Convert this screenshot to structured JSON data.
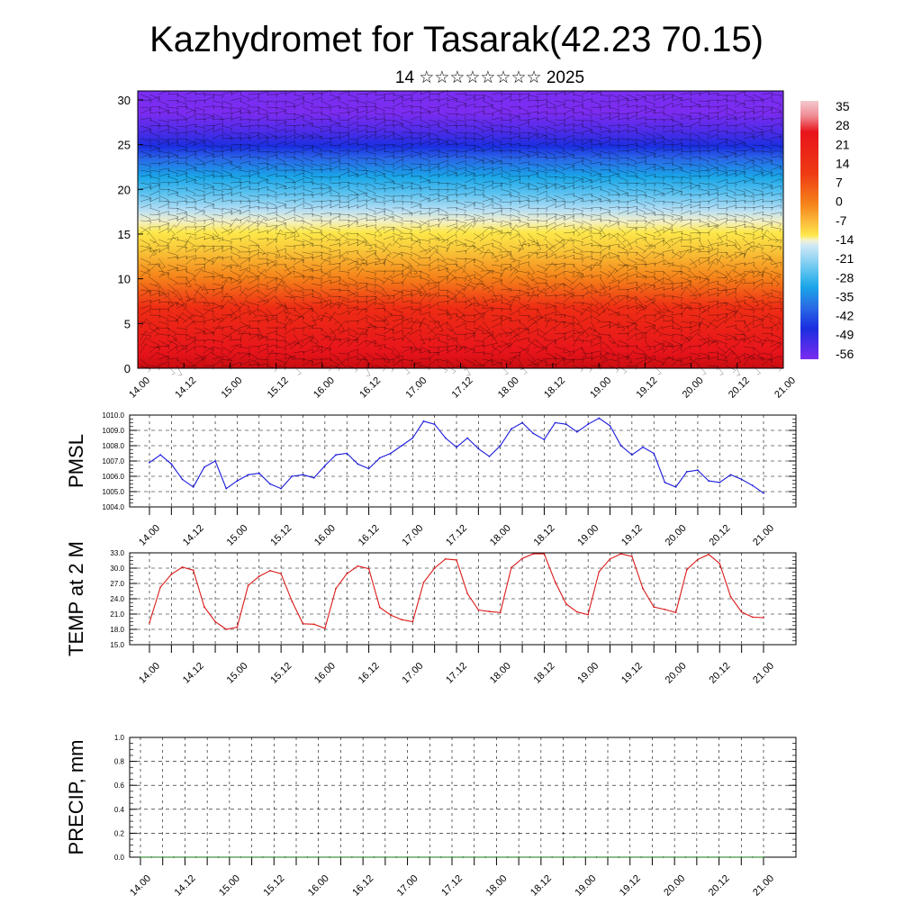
{
  "header": {
    "title": "Kazhydromet for Tasarak(42.23 70.15)",
    "subtitle": "14 ☆☆☆☆☆☆☆☆ 2025"
  },
  "time_ticks": [
    "14.00",
    "14.12",
    "15.00",
    "15.12",
    "16.00",
    "16.12",
    "17.00",
    "17.12",
    "18.00",
    "18.12",
    "19.00",
    "19.12",
    "20.00",
    "20.12",
    "21.00"
  ],
  "chart_data": [
    {
      "type": "heatmap",
      "title": "",
      "xlabel": "",
      "ylabel": "",
      "ylim": [
        0,
        31
      ],
      "y_ticks": [
        "0",
        "5",
        "10",
        "15",
        "20",
        "25",
        "30"
      ],
      "x_ticks": [
        "14.00",
        "14.12",
        "15.00",
        "15.12",
        "16.00",
        "16.12",
        "17.00",
        "17.12",
        "18.00",
        "18.12",
        "19.00",
        "19.12",
        "20.00",
        "20.12",
        "21.00"
      ],
      "colorbar": {
        "labels": [
          "35",
          "28",
          "21",
          "14",
          "7",
          "0",
          "-7",
          "-14",
          "-21",
          "-28",
          "-35",
          "-42",
          "-49",
          "-56"
        ],
        "colors": {
          "warm_top": "#f4c9cf",
          "red": "#e8141b",
          "orange": "#f5841a",
          "yellow": "#fde84a",
          "light_blue": "#b7dff4",
          "cyan": "#1aa6e8",
          "blue": "#1a2ee0",
          "violet": "#7b2cf0"
        }
      },
      "overlay": "wind barbs"
    },
    {
      "type": "line",
      "ylabel": "PMSL",
      "ylim": [
        1004.0,
        1010.0
      ],
      "y_ticks": [
        "1010.0",
        "1009.0",
        "1008.0",
        "1007.0",
        "1006.0",
        "1005.0",
        "1004.0"
      ],
      "x_ticks": [
        "14.00",
        "14.12",
        "15.00",
        "15.12",
        "16.00",
        "16.12",
        "17.00",
        "17.12",
        "18.00",
        "18.12",
        "19.00",
        "19.12",
        "20.00",
        "20.12",
        "21.00"
      ],
      "color": "#1a1adc",
      "series": [
        {
          "x": [
            0,
            3,
            6,
            9,
            12,
            15,
            18,
            21,
            24,
            27,
            30,
            33,
            36,
            39,
            42,
            45,
            48,
            51,
            54,
            57,
            60,
            63,
            66,
            69,
            72,
            75,
            78,
            81,
            84,
            87,
            90,
            93,
            96,
            99,
            102,
            105,
            108,
            111,
            114,
            117,
            120,
            123,
            126,
            129,
            132,
            135,
            138,
            141,
            144,
            147,
            150,
            153,
            156,
            159,
            162,
            165,
            168
          ],
          "values": [
            1006.9,
            1007.4,
            1006.8,
            1005.8,
            1005.3,
            1006.6,
            1007.0,
            1005.2,
            1005.7,
            1006.1,
            1006.2,
            1005.5,
            1005.2,
            1006.0,
            1006.1,
            1005.9,
            1006.7,
            1007.4,
            1007.5,
            1006.8,
            1006.5,
            1007.2,
            1007.5,
            1008.0,
            1008.5,
            1009.6,
            1009.4,
            1008.5,
            1007.9,
            1008.5,
            1007.8,
            1007.3,
            1008.0,
            1009.1,
            1009.5,
            1008.8,
            1008.4,
            1009.5,
            1009.4,
            1008.9,
            1009.4,
            1009.8,
            1009.3,
            1008.0,
            1007.4,
            1007.9,
            1007.5,
            1005.6,
            1005.3,
            1006.3,
            1006.4,
            1005.7,
            1005.6,
            1006.1,
            1005.8,
            1005.4,
            1004.9
          ]
        }
      ]
    },
    {
      "type": "line",
      "ylabel": "TEMP at 2 M",
      "ylim": [
        15.0,
        33.0
      ],
      "y_ticks": [
        "33.0",
        "30.0",
        "27.0",
        "24.0",
        "21.0",
        "18.0",
        "15.0"
      ],
      "x_ticks": [
        "14.00",
        "14.12",
        "15.00",
        "15.12",
        "16.00",
        "16.12",
        "17.00",
        "17.12",
        "18.00",
        "18.12",
        "19.00",
        "19.12",
        "20.00",
        "20.12",
        "21.00"
      ],
      "color": "#dc1a1a",
      "series": [
        {
          "x": [
            0,
            3,
            6,
            9,
            12,
            15,
            18,
            21,
            24,
            27,
            30,
            33,
            36,
            39,
            42,
            45,
            48,
            51,
            54,
            57,
            60,
            63,
            66,
            69,
            72,
            75,
            78,
            81,
            84,
            87,
            90,
            93,
            96,
            99,
            102,
            105,
            108,
            111,
            114,
            117,
            120,
            123,
            126,
            129,
            132,
            135,
            138,
            141,
            144,
            147,
            150,
            153,
            156,
            159,
            162,
            165,
            168
          ],
          "values": [
            19.3,
            26.3,
            28.8,
            30.2,
            29.6,
            22.4,
            19.5,
            18.0,
            18.4,
            26.6,
            28.4,
            29.5,
            28.9,
            23.5,
            19.1,
            19.0,
            18.2,
            26.0,
            28.9,
            30.4,
            29.9,
            22.3,
            20.8,
            19.9,
            19.5,
            27.2,
            30.0,
            31.8,
            31.6,
            25.0,
            21.8,
            21.5,
            21.3,
            30.1,
            31.9,
            32.8,
            32.8,
            27.3,
            23.0,
            21.4,
            20.9,
            29.3,
            31.8,
            32.8,
            32.3,
            26.0,
            22.4,
            21.9,
            21.3,
            29.7,
            31.7,
            32.7,
            30.9,
            24.4,
            21.4,
            20.4,
            20.3
          ]
        }
      ]
    },
    {
      "type": "line",
      "ylabel": "PRECIP, mm",
      "ylim": [
        0.0,
        1.0
      ],
      "y_ticks": [
        "1.0",
        "0.8",
        "0.6",
        "0.4",
        "0.2",
        "0.0"
      ],
      "x_ticks": [
        "14.00",
        "14.12",
        "15.00",
        "15.12",
        "16.00",
        "16.12",
        "17.00",
        "17.12",
        "18.00",
        "18.12",
        "19.00",
        "19.12",
        "20.00",
        "20.12",
        "21.00"
      ],
      "color": "#1a7a1a",
      "series": [
        {
          "x": [
            0,
            3,
            6,
            9,
            12,
            15,
            18,
            21,
            24,
            27,
            30,
            33,
            36,
            39,
            42,
            45,
            48,
            51,
            54,
            57,
            60,
            63,
            66,
            69,
            72,
            75,
            78,
            81,
            84,
            87,
            90,
            93,
            96,
            99,
            102,
            105,
            108,
            111,
            114,
            117,
            120,
            123,
            126,
            129,
            132,
            135,
            138,
            141,
            144,
            147,
            150,
            153,
            156,
            159,
            162,
            165,
            168
          ],
          "values": [
            0,
            0,
            0,
            0,
            0,
            0,
            0,
            0,
            0,
            0,
            0,
            0,
            0,
            0,
            0,
            0,
            0,
            0,
            0,
            0,
            0,
            0,
            0,
            0,
            0,
            0,
            0,
            0,
            0,
            0,
            0,
            0,
            0,
            0,
            0,
            0,
            0,
            0,
            0,
            0,
            0,
            0,
            0,
            0,
            0,
            0,
            0,
            0,
            0,
            0,
            0,
            0,
            0,
            0,
            0,
            0,
            0
          ]
        }
      ]
    }
  ]
}
